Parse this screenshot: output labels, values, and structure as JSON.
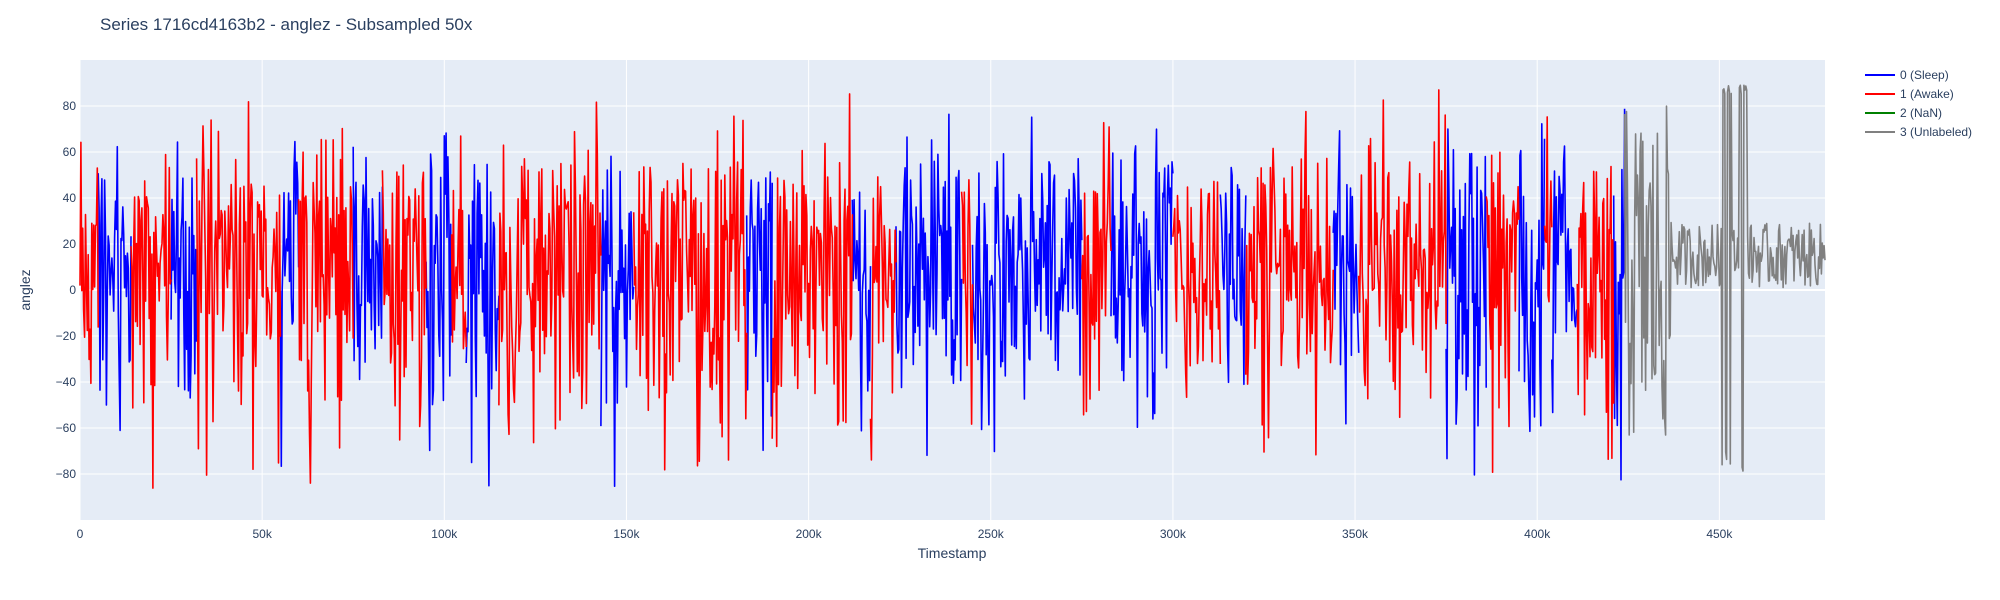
{
  "chart_data": {
    "type": "line",
    "title": "Series 1716cd4163b2 - anglez - Subsampled 50x",
    "xlabel": "Timestamp",
    "ylabel": "anglez",
    "xlim": [
      0,
      479000
    ],
    "ylim": [
      -100,
      100
    ],
    "x_ticks": [
      0,
      50000,
      100000,
      150000,
      200000,
      250000,
      300000,
      350000,
      400000,
      450000
    ],
    "x_tick_labels": [
      "0",
      "50k",
      "100k",
      "150k",
      "200k",
      "250k",
      "300k",
      "350k",
      "400k",
      "450k"
    ],
    "y_ticks": [
      -80,
      -60,
      -40,
      -20,
      0,
      20,
      40,
      60,
      80
    ],
    "y_tick_labels": [
      "−80",
      "−60",
      "−40",
      "−20",
      "0",
      "20",
      "40",
      "60",
      "80"
    ],
    "grid": true,
    "legend_position": "top-right",
    "background_color": "#e5ecf6",
    "series": [
      {
        "name": "0 (Sleep)",
        "color": "#0000ff",
        "segments": [
          [
            5000,
            14000
          ],
          [
            25000,
            32000
          ],
          [
            55000,
            60000
          ],
          [
            75000,
            83000
          ],
          [
            95000,
            102000
          ],
          [
            106000,
            115000
          ],
          [
            143000,
            152000
          ],
          [
            183000,
            190000
          ],
          [
            212000,
            217000
          ],
          [
            224000,
            242000
          ],
          [
            245000,
            275000
          ],
          [
            283000,
            300000
          ],
          [
            313000,
            320000
          ],
          [
            344000,
            351000
          ],
          [
            375000,
            386000
          ],
          [
            395000,
            402000
          ],
          [
            404000,
            411000
          ],
          [
            421000,
            424000
          ]
        ],
        "amplitude": [
          -85,
          85
        ]
      },
      {
        "name": "1 (Awake)",
        "color": "#ff0000",
        "segments": [
          [
            0,
            5000
          ],
          [
            14000,
            25000
          ],
          [
            32000,
            55000
          ],
          [
            60000,
            75000
          ],
          [
            83000,
            95000
          ],
          [
            102000,
            106000
          ],
          [
            115000,
            143000
          ],
          [
            152000,
            183000
          ],
          [
            190000,
            212000
          ],
          [
            217000,
            224000
          ],
          [
            242000,
            245000
          ],
          [
            275000,
            283000
          ],
          [
            300000,
            313000
          ],
          [
            320000,
            344000
          ],
          [
            351000,
            375000
          ],
          [
            386000,
            395000
          ],
          [
            402000,
            404000
          ],
          [
            411000,
            421000
          ]
        ],
        "amplitude": [
          -88,
          88
        ]
      },
      {
        "name": "2 (NaN)",
        "color": "#008000",
        "segments": []
      },
      {
        "name": "3 (Unlabeled)",
        "color": "#808080",
        "segments": [
          [
            424000,
            479000
          ]
        ],
        "amplitude": [
          -85,
          90
        ]
      }
    ]
  }
}
